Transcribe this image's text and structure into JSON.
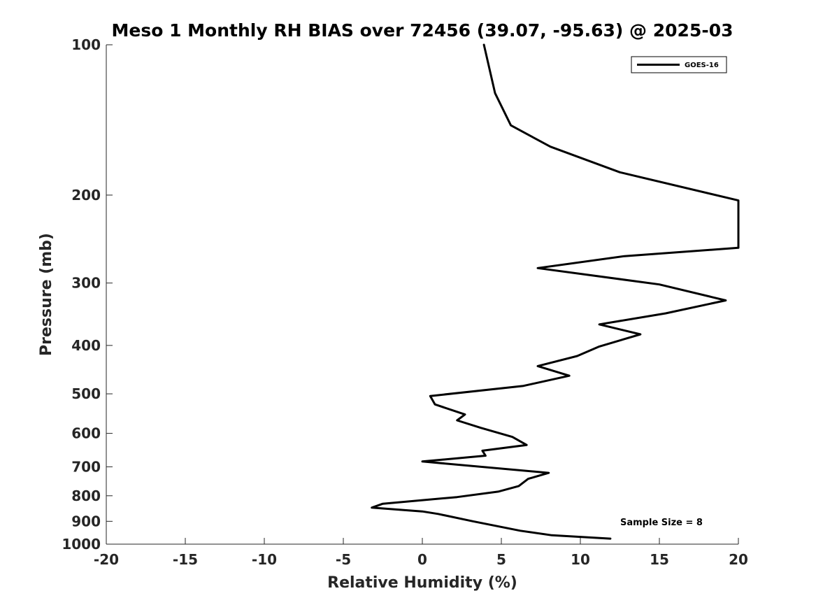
{
  "chart_data": {
    "type": "line",
    "title": "Meso 1 Monthly RH BIAS over 72456 (39.07, -95.63) @ 2025-03",
    "xlabel": "Relative Humidity (%)",
    "ylabel": "Pressure (mb)",
    "xlim": [
      -20,
      20
    ],
    "ylim": [
      100,
      1000
    ],
    "y_scale": "log",
    "y_reversed": true,
    "x_ticks": [
      "-20",
      "-15",
      "-10",
      "-5",
      "0",
      "5",
      "10",
      "15",
      "20"
    ],
    "y_ticks": [
      "100",
      "200",
      "300",
      "400",
      "500",
      "600",
      "700",
      "800",
      "900",
      "1000"
    ],
    "grid": false,
    "legend_position": "top-right",
    "annotation": "Sample Size = 8",
    "series": [
      {
        "name": "GOES-16",
        "color": "#000000",
        "points": [
          {
            "x": 11.9,
            "y": 975
          },
          {
            "x": 8.2,
            "y": 960
          },
          {
            "x": 6.2,
            "y": 940
          },
          {
            "x": 3.2,
            "y": 900
          },
          {
            "x": 1.0,
            "y": 870
          },
          {
            "x": 0.0,
            "y": 860
          },
          {
            "x": -3.2,
            "y": 845
          },
          {
            "x": -2.5,
            "y": 830
          },
          {
            "x": 2.2,
            "y": 805
          },
          {
            "x": 4.8,
            "y": 785
          },
          {
            "x": 6.1,
            "y": 765
          },
          {
            "x": 6.7,
            "y": 740
          },
          {
            "x": 8.0,
            "y": 720
          },
          {
            "x": 0.0,
            "y": 683
          },
          {
            "x": 4.0,
            "y": 665
          },
          {
            "x": 3.8,
            "y": 650
          },
          {
            "x": 6.6,
            "y": 633
          },
          {
            "x": 5.7,
            "y": 610
          },
          {
            "x": 3.7,
            "y": 585
          },
          {
            "x": 2.2,
            "y": 565
          },
          {
            "x": 2.7,
            "y": 550
          },
          {
            "x": 0.8,
            "y": 525
          },
          {
            "x": 0.5,
            "y": 505
          },
          {
            "x": 6.4,
            "y": 482
          },
          {
            "x": 9.3,
            "y": 460
          },
          {
            "x": 7.3,
            "y": 440
          },
          {
            "x": 9.8,
            "y": 420
          },
          {
            "x": 11.2,
            "y": 402
          },
          {
            "x": 13.8,
            "y": 380
          },
          {
            "x": 11.2,
            "y": 363
          },
          {
            "x": 15.4,
            "y": 345
          },
          {
            "x": 19.2,
            "y": 325
          },
          {
            "x": 15.0,
            "y": 302
          },
          {
            "x": 7.3,
            "y": 280
          },
          {
            "x": 12.8,
            "y": 265
          },
          {
            "x": 20.0,
            "y": 255
          },
          {
            "x": 20.0,
            "y": 205
          },
          {
            "x": 12.5,
            "y": 180
          },
          {
            "x": 8.1,
            "y": 160
          },
          {
            "x": 5.6,
            "y": 145
          },
          {
            "x": 4.6,
            "y": 125
          },
          {
            "x": 3.9,
            "y": 100
          }
        ]
      }
    ]
  }
}
